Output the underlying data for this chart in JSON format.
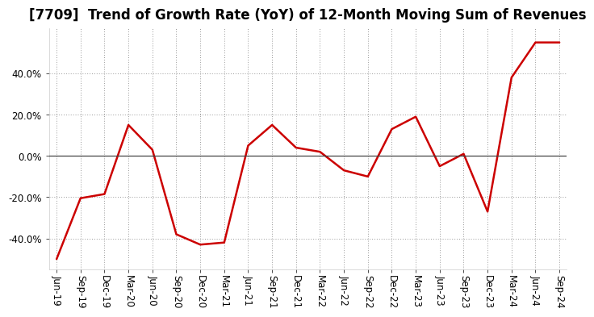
{
  "title": "[7709]  Trend of Growth Rate (YoY) of 12-Month Moving Sum of Revenues",
  "x_labels": [
    "Jun-19",
    "Sep-19",
    "Dec-19",
    "Mar-20",
    "Jun-20",
    "Sep-20",
    "Dec-20",
    "Mar-21",
    "Jun-21",
    "Sep-21",
    "Dec-21",
    "Mar-22",
    "Jun-22",
    "Sep-22",
    "Dec-22",
    "Mar-23",
    "Jun-23",
    "Sep-23",
    "Dec-23",
    "Mar-24",
    "Jun-24",
    "Sep-24"
  ],
  "y_values": [
    -50.0,
    -20.5,
    -18.5,
    15.0,
    3.0,
    -38.0,
    -43.0,
    -42.0,
    5.0,
    15.0,
    4.0,
    2.0,
    -7.0,
    -10.0,
    13.0,
    19.0,
    -5.0,
    1.0,
    -27.0,
    38.0,
    55.0,
    55.0
  ],
  "line_color": "#cc0000",
  "line_width": 1.8,
  "bg_color": "#ffffff",
  "plot_bg_color": "#ffffff",
  "grid_color": "#999999",
  "title_fontsize": 12,
  "tick_fontsize": 8.5,
  "ylim": [
    -55,
    62
  ],
  "yticks": [
    -40.0,
    -20.0,
    0.0,
    20.0,
    40.0
  ]
}
